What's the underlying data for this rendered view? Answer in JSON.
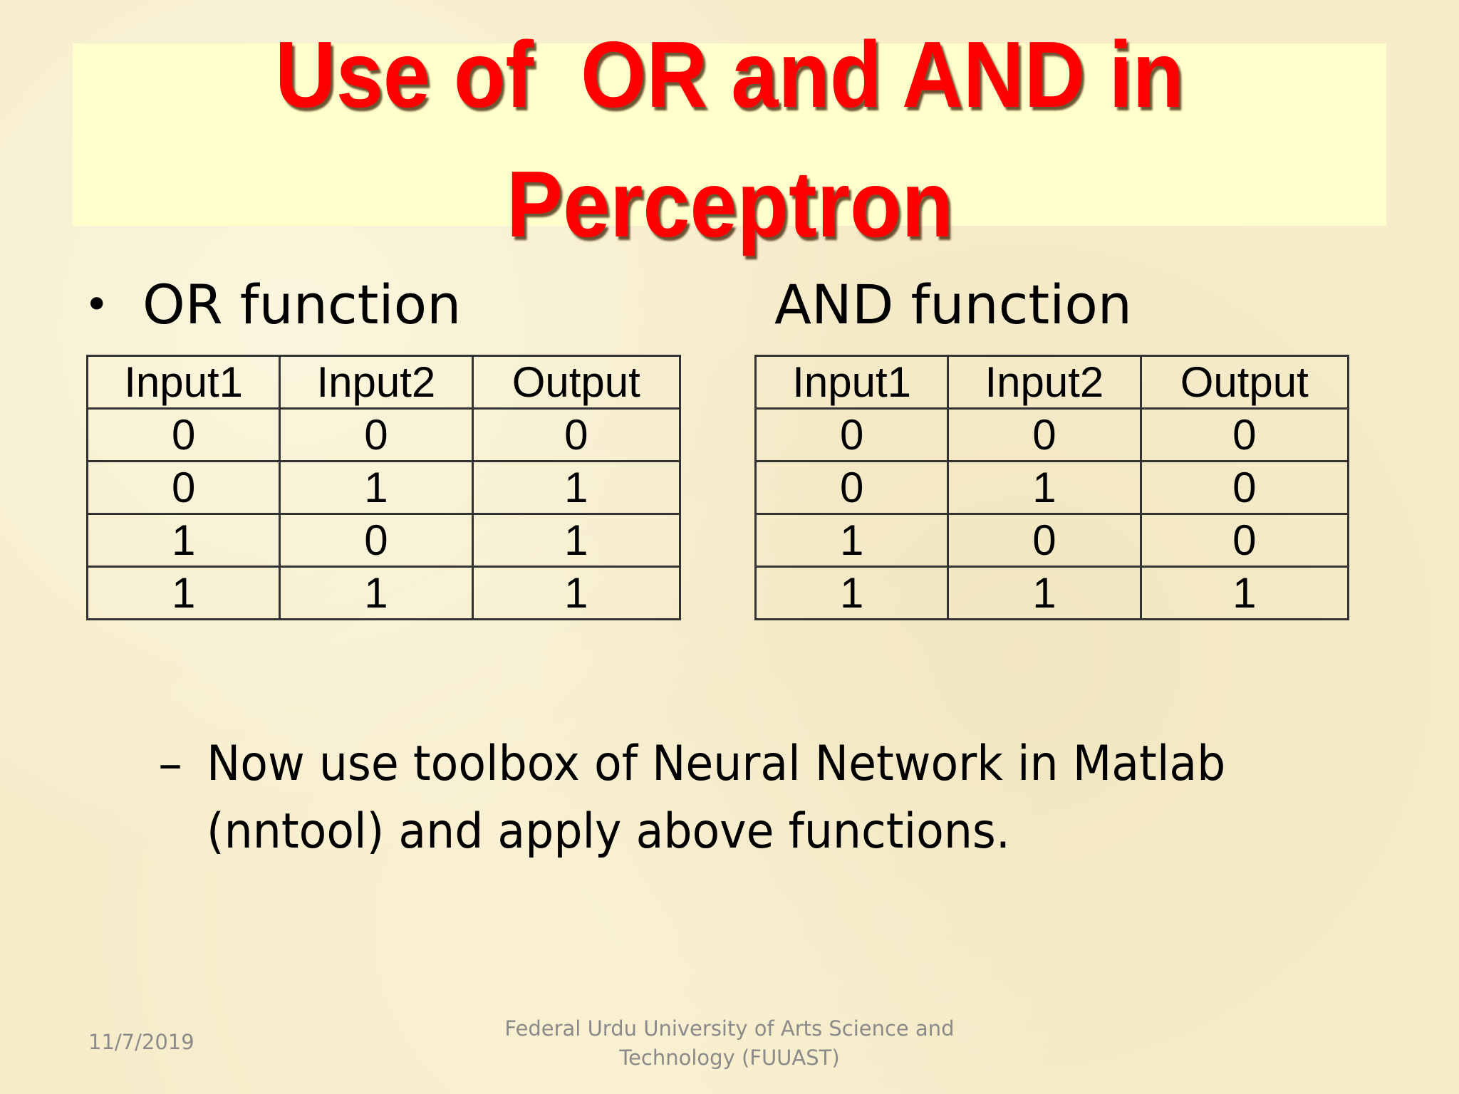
{
  "title": {
    "line1": "Use of  OR and AND in",
    "line2": "Perceptron",
    "color": "#ff0000",
    "box_color": "#ffffcc"
  },
  "or_section": {
    "bullet": "•",
    "heading": "OR function",
    "headers": [
      "Input1",
      "Input2",
      "Output"
    ],
    "rows": [
      [
        "0",
        "0",
        "0"
      ],
      [
        "0",
        "1",
        "1"
      ],
      [
        "1",
        "0",
        "1"
      ],
      [
        "1",
        "1",
        "1"
      ]
    ]
  },
  "and_section": {
    "heading": "AND function",
    "headers": [
      "Input1",
      "Input2",
      "Output"
    ],
    "rows": [
      [
        "0",
        "0",
        "0"
      ],
      [
        "0",
        "1",
        "0"
      ],
      [
        "1",
        "0",
        "0"
      ],
      [
        "1",
        "1",
        "1"
      ]
    ]
  },
  "sub_bullet": {
    "dash": "–",
    "line1": "Now use toolbox of Neural Network in Matlab",
    "line2": "(nntool) and apply above functions."
  },
  "footer": {
    "date": "11/7/2019",
    "line1": "Federal Urdu University of Arts Science and",
    "line2": "Technology (FUUAST)"
  }
}
